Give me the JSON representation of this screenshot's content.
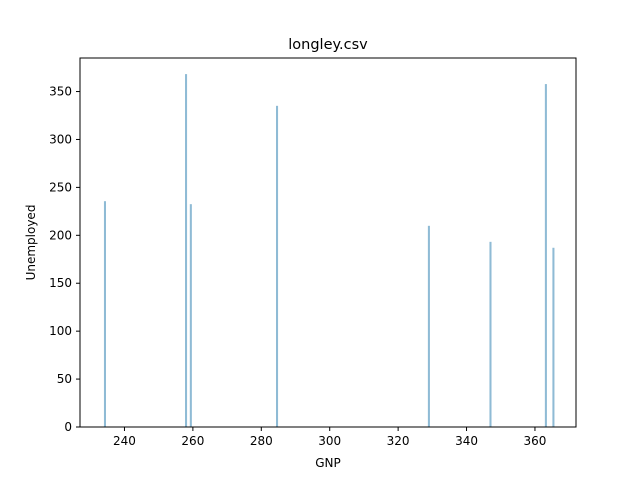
{
  "chart_data": {
    "type": "bar",
    "title": "longley.csv",
    "xlabel": "GNP",
    "ylabel": "Unemployed",
    "xlim": [
      227.0,
      372.0
    ],
    "ylim": [
      0,
      385
    ],
    "x_ticks": [
      240,
      260,
      280,
      300,
      320,
      340,
      360
    ],
    "y_ticks": [
      0,
      50,
      100,
      150,
      200,
      250,
      300,
      350
    ],
    "grid": false,
    "bar_color": "#8fbbd5",
    "bar_width": 0.6,
    "x": [
      234.3,
      258.0,
      259.4,
      284.6,
      329.0,
      347.0,
      363.2,
      365.4
    ],
    "values": [
      235.6,
      368.2,
      232.5,
      335.1,
      209.9,
      193.2,
      357.8,
      187.0
    ]
  }
}
